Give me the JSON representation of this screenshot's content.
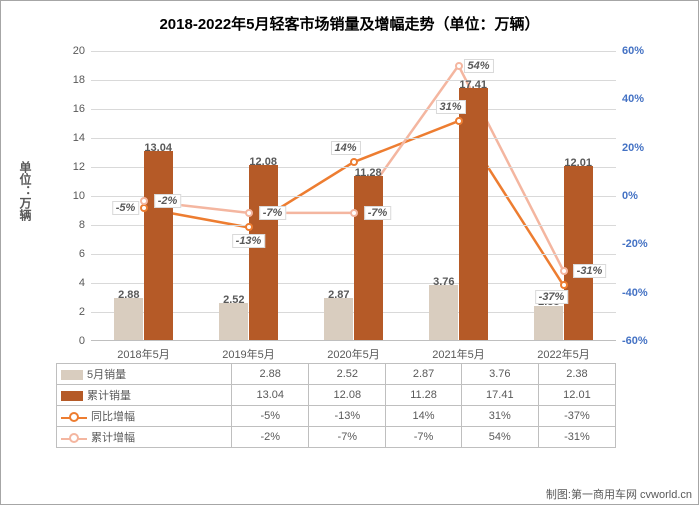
{
  "title": "2018-2022年5月轻客市场销量及增幅走势（单位：万辆）",
  "ylabel_left": "单位：万辆",
  "credit": "制图:第一商用车网 cvworld.cn",
  "categories": [
    "2018年5月",
    "2019年5月",
    "2020年5月",
    "2021年5月",
    "2022年5月"
  ],
  "background_color": "#ffffff",
  "grid_color": "#d9d9d9",
  "left_axis": {
    "min": 0,
    "max": 20,
    "step": 2,
    "label_color": "#595959",
    "label_fontsize": 11
  },
  "right_axis": {
    "min": -60,
    "max": 60,
    "step": 20,
    "label_color": "#4472c4",
    "label_fontsize": 11
  },
  "series": {
    "may_sales": {
      "name": "5月销量",
      "type": "bar",
      "color": "#d9cdbf",
      "values": [
        2.88,
        2.52,
        2.87,
        3.76,
        2.38
      ],
      "display": [
        "2.88",
        "2.52",
        "2.87",
        "3.76",
        "2.38"
      ],
      "label_offset_y": -10
    },
    "cum_sales": {
      "name": "累计销量",
      "type": "bar",
      "color": "#b55a27",
      "values": [
        13.04,
        12.08,
        11.28,
        17.41,
        12.01
      ],
      "display": [
        "13.04",
        "12.08",
        "11.28",
        "17.41",
        "12.01"
      ],
      "label_offset_y": -10
    },
    "yoy": {
      "name": "同比增幅",
      "type": "line",
      "color": "#ed7d31",
      "values": [
        -5,
        -13,
        14,
        31,
        -37
      ],
      "display": [
        "-5%",
        "-13%",
        "14%",
        "31%",
        "-37%"
      ],
      "label_dx": [
        -18,
        0,
        -8,
        -8,
        -12
      ],
      "label_dy": [
        0,
        14,
        -14,
        -14,
        12
      ]
    },
    "cum_yoy": {
      "name": "累计增幅",
      "type": "line",
      "color": "#f4b6a0",
      "values": [
        -2,
        -7,
        -7,
        54,
        -31
      ],
      "display": [
        "-2%",
        "-7%",
        "-7%",
        "54%",
        "-31%"
      ],
      "label_dx": [
        24,
        24,
        24,
        20,
        26
      ],
      "label_dy": [
        0,
        0,
        0,
        0,
        0
      ]
    }
  },
  "bar_group_width": 0.56,
  "title_fontsize": 15
}
